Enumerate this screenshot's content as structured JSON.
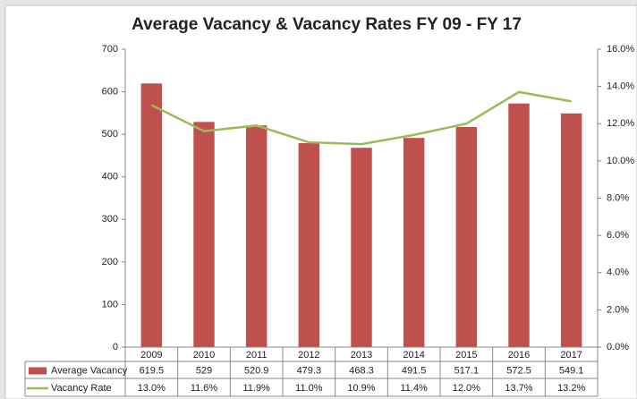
{
  "chart_data": {
    "type": "bar",
    "title": "Average Vacancy & Vacancy Rates FY 09 - FY 17",
    "categories": [
      "2009",
      "2010",
      "2011",
      "2012",
      "2013",
      "2014",
      "2015",
      "2016",
      "2017"
    ],
    "series": [
      {
        "name": "Average Vacancy",
        "type": "bar",
        "color": "#c0504d",
        "values": [
          619.5,
          529,
          520.9,
          479.3,
          468.3,
          491.5,
          517.1,
          572.5,
          549.1
        ]
      },
      {
        "name": "Vacancy Rate",
        "type": "line",
        "color": "#9bbb59",
        "axis": "y2",
        "values": [
          13.0,
          11.6,
          11.9,
          11.0,
          10.9,
          11.4,
          12.0,
          13.7,
          13.2
        ],
        "value_labels": [
          "13.0%",
          "11.6%",
          "11.9%",
          "11.0%",
          "10.9%",
          "11.4%",
          "12.0%",
          "13.7%",
          "13.2%"
        ]
      }
    ],
    "ylim": [
      0,
      700
    ],
    "yticks": [
      0,
      100,
      200,
      300,
      400,
      500,
      600,
      700
    ],
    "y2lim": [
      0,
      16
    ],
    "y2ticks": [
      {
        "value": 0,
        "label": "0.0%"
      },
      {
        "value": 2,
        "label": "2.0%"
      },
      {
        "value": 4,
        "label": "4.0%"
      },
      {
        "value": 6,
        "label": "6.0%"
      },
      {
        "value": 8,
        "label": "8.0%"
      },
      {
        "value": 10,
        "label": "10.0%"
      },
      {
        "value": 12,
        "label": "12.0%"
      },
      {
        "value": 14,
        "label": "14.0%"
      },
      {
        "value": 16,
        "label": "16.0%"
      }
    ],
    "grid": false,
    "legend": "data-table"
  }
}
